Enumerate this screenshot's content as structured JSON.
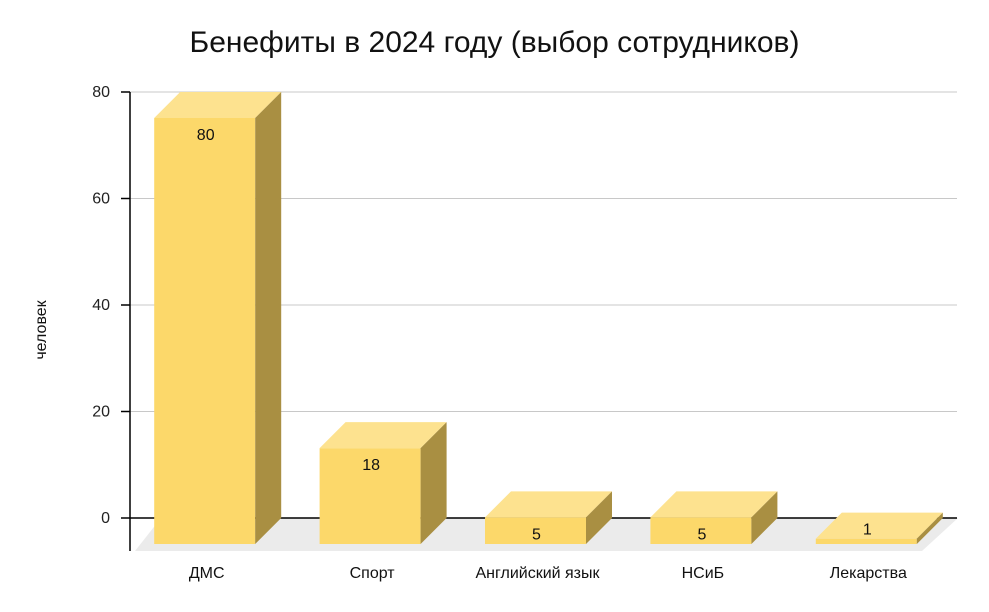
{
  "chart_data": {
    "type": "bar",
    "title": "Бенефиты в 2024 году (выбор сотрудников)",
    "ylabel": "человек",
    "xlabel": "",
    "categories": [
      "ДМС",
      "Спорт",
      "Английский язык",
      "НСиБ",
      "Лекарства"
    ],
    "values": [
      80,
      18,
      5,
      5,
      1
    ],
    "yticks": [
      0,
      20,
      40,
      60,
      80
    ],
    "ylim": [
      0,
      80
    ],
    "grid": true,
    "legend": "none",
    "style": "3d-column",
    "colors": {
      "front": "#FCD86A",
      "top": "#FDE28F",
      "side": "#A98F42",
      "floor": "#EBEBEB"
    }
  }
}
